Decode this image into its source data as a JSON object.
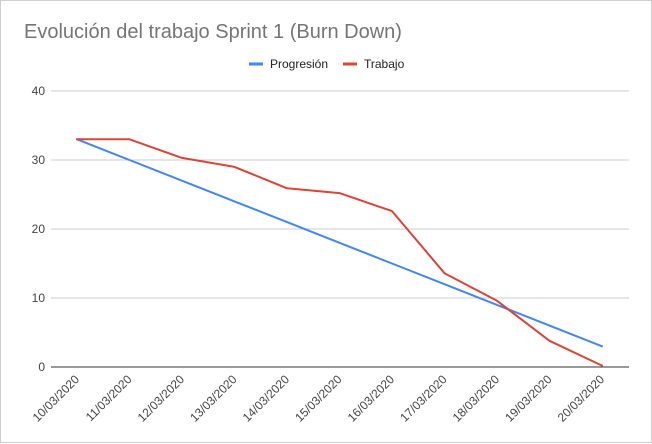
{
  "chart_data": {
    "type": "line",
    "title": "Evolución del trabajo Sprint 1 (Burn Down)",
    "categories": [
      "10/03/2020",
      "11/03/2020",
      "12/03/2020",
      "13/03/2020",
      "14/03/2020",
      "15/03/2020",
      "16/03/2020",
      "17/03/2020",
      "18/03/2020",
      "19/03/2020",
      "20/03/2020"
    ],
    "series": [
      {
        "name": "Progresión",
        "color": "#4285f4",
        "values": [
          33,
          30,
          27,
          24,
          21,
          18,
          15,
          12,
          9,
          6,
          3
        ]
      },
      {
        "name": "Trabajo",
        "color": "#db4437",
        "values": [
          33,
          33,
          30.3,
          29,
          25.9,
          25.2,
          22.6,
          13.6,
          9.6,
          3.8,
          0.2
        ]
      }
    ],
    "ylim": [
      0,
      40
    ],
    "yticks": [
      0,
      10,
      20,
      30,
      40
    ],
    "grid": true,
    "legend_position": "top",
    "xlabel": "",
    "ylabel": ""
  }
}
